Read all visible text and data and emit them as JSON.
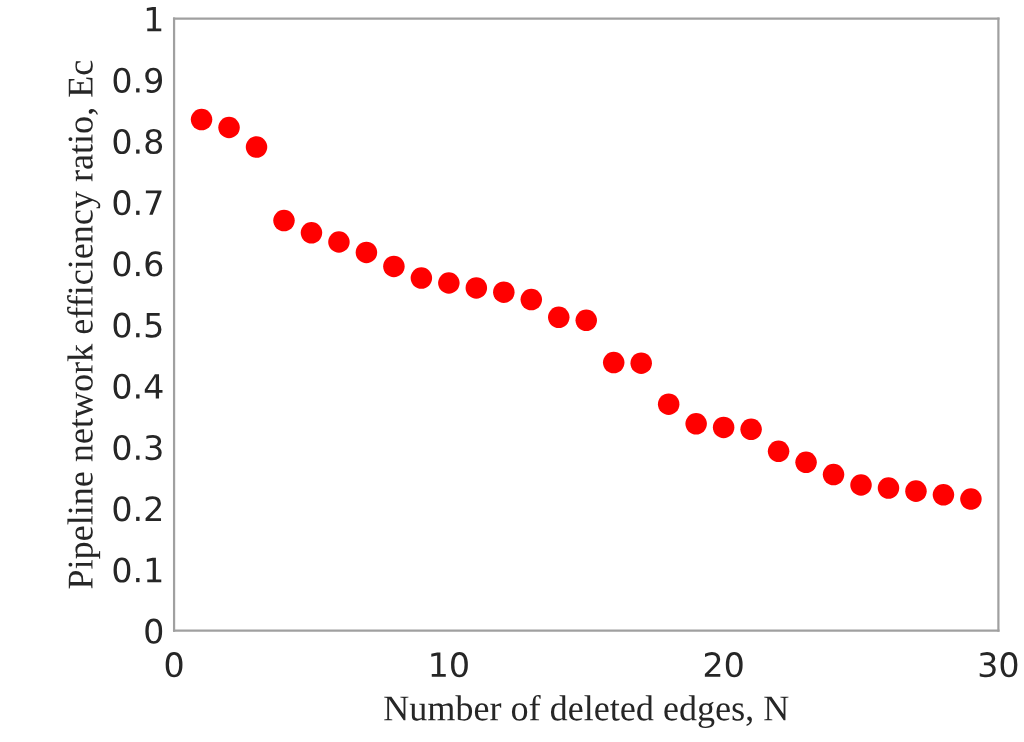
{
  "chart_data": {
    "type": "scatter",
    "xlabel": "Number of deleted edges, N",
    "ylabel": "Pipeline network efficiency ratio, Ec",
    "x": [
      1,
      2,
      3,
      4,
      5,
      6,
      7,
      8,
      9,
      10,
      11,
      12,
      13,
      14,
      15,
      16,
      17,
      18,
      19,
      20,
      21,
      22,
      23,
      24,
      25,
      26,
      27,
      28,
      29
    ],
    "series": [
      {
        "color": "#ff0000",
        "values": [
          0.835,
          0.822,
          0.79,
          0.67,
          0.65,
          0.635,
          0.618,
          0.595,
          0.576,
          0.568,
          0.56,
          0.553,
          0.541,
          0.512,
          0.507,
          0.438,
          0.437,
          0.37,
          0.338,
          0.332,
          0.329,
          0.293,
          0.275,
          0.255,
          0.238,
          0.233,
          0.228,
          0.222,
          0.215
        ]
      }
    ],
    "xlim": [
      0,
      30
    ],
    "xticks": [
      0,
      10,
      20,
      30
    ],
    "ylim": [
      0,
      1
    ],
    "yticks": [
      0,
      0.1,
      0.2,
      0.3,
      0.4,
      0.5,
      0.6,
      0.7,
      0.8,
      0.9,
      1
    ],
    "marker": "circle",
    "grid": false
  }
}
